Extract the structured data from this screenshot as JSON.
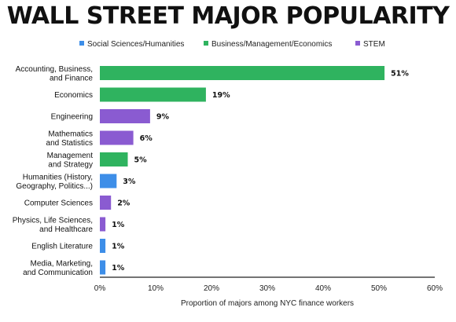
{
  "chart_data": {
    "type": "bar",
    "orientation": "horizontal",
    "title": "WALL STREET MAJOR POPULARITY",
    "xlabel": "Proportion of majors among NYC finance workers",
    "ylabel": "",
    "xlim": [
      0,
      60
    ],
    "x_ticks": [
      "0%",
      "10%",
      "20%",
      "30%",
      "40%",
      "50%",
      "60%"
    ],
    "x_tick_values": [
      0,
      10,
      20,
      30,
      40,
      50,
      60
    ],
    "legend_position": "top",
    "legend": [
      {
        "name": "Social Sciences/Humanities",
        "color": "#3d8ee8"
      },
      {
        "name": "Business/Management/Economics",
        "color": "#2fb35f"
      },
      {
        "name": "STEM",
        "color": "#8a5bd1"
      }
    ],
    "categories": [
      [
        "Accounting, Business,",
        "and Finance"
      ],
      [
        "Economics"
      ],
      [
        "Engineering"
      ],
      [
        "Mathematics",
        "and Statistics"
      ],
      [
        "Management",
        "and Strategy"
      ],
      [
        "Humanities (History,",
        "Geography, Politics...)"
      ],
      [
        "Computer Sciences"
      ],
      [
        "Physics, Life Sciences,",
        "and Healthcare"
      ],
      [
        "English Literature"
      ],
      [
        "Media, Marketing,",
        "and Communication"
      ]
    ],
    "values": [
      51,
      19,
      9,
      6,
      5,
      3,
      2,
      1,
      1,
      1
    ],
    "value_labels": [
      "51%",
      "19%",
      "9%",
      "6%",
      "5%",
      "3%",
      "2%",
      "1%",
      "1%",
      "1%"
    ],
    "groups": [
      1,
      1,
      2,
      2,
      1,
      0,
      2,
      2,
      0,
      0
    ],
    "grid": false
  }
}
